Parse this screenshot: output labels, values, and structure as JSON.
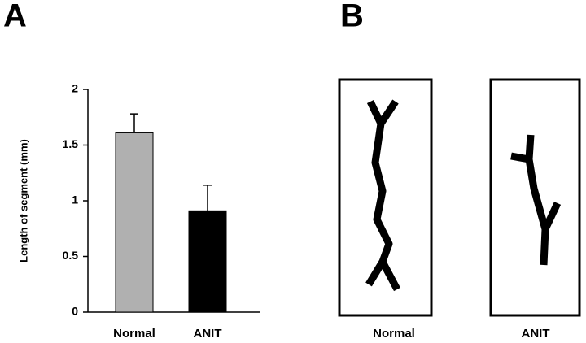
{
  "chart_data": {
    "type": "bar",
    "panel_label": "A",
    "y_label": "Length of segment (mm)",
    "categories": [
      "Normal",
      "ANIT"
    ],
    "values": [
      1.61,
      0.91
    ],
    "errors": [
      0.17,
      0.23
    ],
    "colors": [
      "#b0b0b0",
      "#000000"
    ],
    "ylim": [
      0,
      2
    ],
    "yticks": [
      0,
      0.5,
      1,
      1.5,
      2
    ]
  },
  "panel_b": {
    "label": "B",
    "images": [
      "Normal",
      "ANIT"
    ]
  }
}
